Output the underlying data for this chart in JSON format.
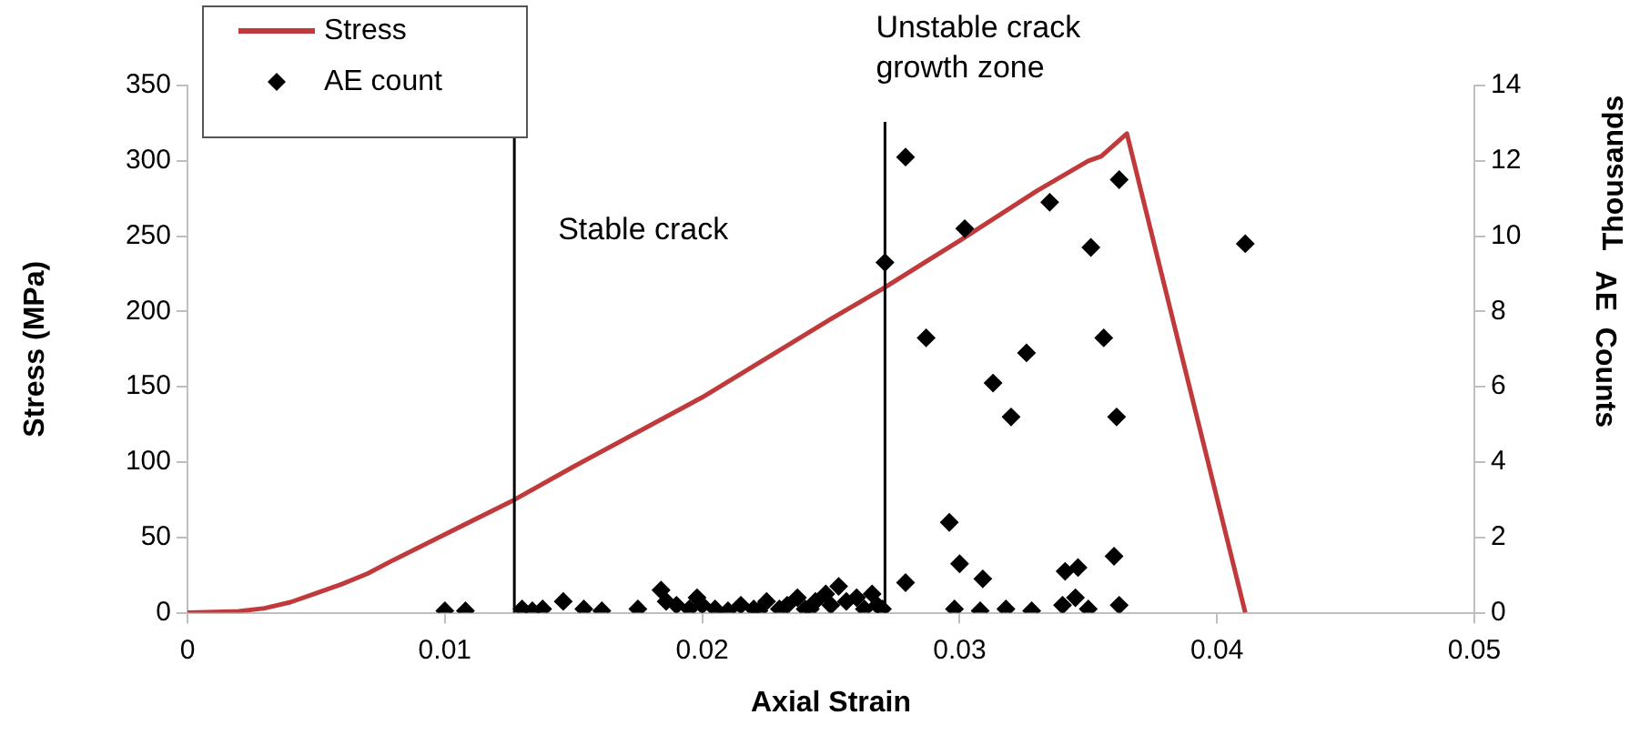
{
  "chart_data": {
    "type": "line",
    "xlabel": "Axial Strain",
    "ylabel": "Stress (MPa)",
    "y2label": "AE  Counts",
    "xlim": [
      0,
      0.05
    ],
    "xticks": [
      0,
      0.01,
      0.02,
      0.03,
      0.04,
      0.05
    ],
    "ylim": [
      0,
      350
    ],
    "yticks": [
      0,
      50,
      100,
      150,
      200,
      250,
      300,
      350
    ],
    "y2lim": [
      0,
      14
    ],
    "y2ticks": [
      0,
      2,
      4,
      6,
      8,
      10,
      12,
      14
    ],
    "legend": "top left",
    "grid": false,
    "ref_lines": [
      {
        "axis": "x",
        "value": 0.0127,
        "color": "#000000"
      },
      {
        "axis": "x",
        "value": 0.0271,
        "color": "#000000"
      }
    ],
    "annotations": [
      "Stable crack",
      "Unstable crack growth zone",
      "Thousands"
    ],
    "series": [
      {
        "name": "Stress",
        "type": "line",
        "color": "#c0393b",
        "marker": "none",
        "x": [
          0,
          0.002,
          0.003,
          0.004,
          0.005,
          0.006,
          0.007,
          0.008,
          0.01,
          0.0127,
          0.015,
          0.02,
          0.025,
          0.027,
          0.03,
          0.033,
          0.035,
          0.0355,
          0.0365,
          0.0411
        ],
        "values": [
          0,
          1,
          3,
          7,
          13,
          19,
          26,
          35,
          52,
          75,
          97,
          143,
          195,
          215,
          247,
          280,
          300,
          303,
          318,
          0
        ]
      },
      {
        "name": "AE count",
        "type": "scatter",
        "axis": "y2",
        "color": "#000000",
        "marker": "diamond",
        "x": [
          0.01,
          0.0108,
          0.013,
          0.0134,
          0.0138,
          0.0146,
          0.0154,
          0.0161,
          0.0175,
          0.0184,
          0.0186,
          0.019,
          0.0195,
          0.02,
          0.0205,
          0.021,
          0.0215,
          0.022,
          0.0225,
          0.023,
          0.0233,
          0.0237,
          0.024,
          0.0244,
          0.0248,
          0.025,
          0.0253,
          0.0256,
          0.026,
          0.0263,
          0.0266,
          0.0268,
          0.027,
          0.0271,
          0.0279,
          0.0287,
          0.0296,
          0.03,
          0.0302,
          0.0309,
          0.0313,
          0.032,
          0.0326,
          0.0335,
          0.0341,
          0.0346,
          0.0351,
          0.0356,
          0.036,
          0.0361,
          0.0362,
          0.0411,
          0.0279,
          0.0298,
          0.0308,
          0.0318,
          0.0328,
          0.034,
          0.0345,
          0.035,
          0.0362,
          0.0198,
          0.0222,
          0.0242
        ],
        "values": [
          0.05,
          0.05,
          0.1,
          0.05,
          0.1,
          0.3,
          0.1,
          0.05,
          0.1,
          0.6,
          0.3,
          0.2,
          0.1,
          0.2,
          0.1,
          0.05,
          0.2,
          0.1,
          0.3,
          0.1,
          0.2,
          0.4,
          0.1,
          0.3,
          0.5,
          0.2,
          0.7,
          0.3,
          0.4,
          0.1,
          0.5,
          0.2,
          0.1,
          9.3,
          12.1,
          7.3,
          2.4,
          1.3,
          10.2,
          0.9,
          6.1,
          5.2,
          6.9,
          10.9,
          1.1,
          1.2,
          9.7,
          7.3,
          1.5,
          5.2,
          11.5,
          9.8,
          0.8,
          0.1,
          0.05,
          0.1,
          0.05,
          0.2,
          0.4,
          0.1,
          0.2,
          0.4,
          0.05,
          0.1
        ]
      }
    ]
  }
}
